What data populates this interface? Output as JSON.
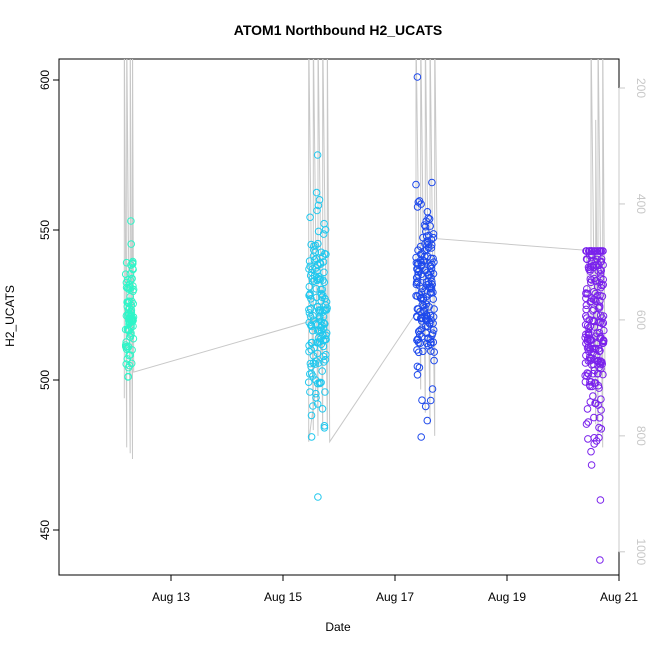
{
  "chart_data": {
    "type": "scatter",
    "title": "ATOM1 Northbound H2_UCATS",
    "xlabel": "Date",
    "ylabel": "H2_UCATS",
    "x_axis": {
      "type": "date",
      "range": [
        "2016-08-11",
        "2016-08-21"
      ],
      "ticks": [
        {
          "label": "Aug 13",
          "value": "2016-08-13"
        },
        {
          "label": "Aug 15",
          "value": "2016-08-15"
        },
        {
          "label": "Aug 17",
          "value": "2016-08-17"
        },
        {
          "label": "Aug 19",
          "value": "2016-08-19"
        },
        {
          "label": "Aug 21",
          "value": "2016-08-21"
        }
      ]
    },
    "y_axis": {
      "range": [
        435,
        607
      ],
      "ticks": [
        {
          "label": "450",
          "value": 450
        },
        {
          "label": "500",
          "value": 500
        },
        {
          "label": "550",
          "value": 550
        },
        {
          "label": "600",
          "value": 600
        }
      ]
    },
    "y2_axis": {
      "reversed": true,
      "range": [
        1040,
        150
      ],
      "color": "#c8c8c8",
      "ticks": [
        {
          "label": "200",
          "value": 200
        },
        {
          "label": "400",
          "value": 400
        },
        {
          "label": "600",
          "value": 600
        },
        {
          "label": "800",
          "value": 800
        },
        {
          "label": "1000",
          "value": 1000
        }
      ]
    },
    "grid": false,
    "flights": [
      {
        "start": "2016-08-12 04:30",
        "end": "2016-08-12 08:00",
        "color": "#2ff5c8",
        "center": 523,
        "spread": 11,
        "min": 501,
        "max": 553,
        "n": 90
      },
      {
        "start": "2016-08-15 11:00",
        "end": "2016-08-15 19:00",
        "color": "#22c8ee",
        "center": 520,
        "spread": 17,
        "min": 461,
        "max": 575,
        "n": 160
      },
      {
        "start": "2016-08-17 09:00",
        "end": "2016-08-17 17:00",
        "color": "#1e49ec",
        "center": 527,
        "spread": 14,
        "min": 481,
        "max": 601,
        "n": 170
      },
      {
        "start": "2016-08-20 09:30",
        "end": "2016-08-20 17:30",
        "color": "#7a22ec",
        "center": 517,
        "spread": 20,
        "min": 440,
        "max": 543,
        "n": 210
      }
    ],
    "pressure_track": {
      "color": "#c8c8c8",
      "points": [
        [
          "2016-08-12 04:00",
          735
        ],
        [
          "2016-08-12 04:00",
          100
        ],
        [
          "2016-08-12 05:00",
          820
        ],
        [
          "2016-08-12 05:00",
          100
        ],
        [
          "2016-08-12 06:30",
          830
        ],
        [
          "2016-08-12 06:30",
          100
        ],
        [
          "2016-08-12 07:30",
          840
        ],
        [
          "2016-08-12 07:30",
          100
        ],
        [
          "2016-08-12 08:00",
          690
        ],
        [
          "2016-08-15 18:00",
          595
        ],
        [
          "2016-08-15 11:00",
          810
        ],
        [
          "2016-08-15 11:00",
          100
        ],
        [
          "2016-08-15 13:00",
          790
        ],
        [
          "2016-08-15 13:00",
          100
        ],
        [
          "2016-08-15 15:00",
          800
        ],
        [
          "2016-08-15 15:00",
          100
        ],
        [
          "2016-08-15 17:00",
          790
        ],
        [
          "2016-08-15 17:00",
          100
        ],
        [
          "2016-08-15 19:00",
          780
        ],
        [
          "2016-08-15 19:00",
          100
        ],
        [
          "2016-08-15 20:00",
          810
        ],
        [
          "2016-08-17 12:00",
          570
        ],
        [
          "2016-08-17 09:00",
          560
        ],
        [
          "2016-08-17 09:00",
          100
        ],
        [
          "2016-08-17 11:00",
          720
        ],
        [
          "2016-08-17 11:00",
          100
        ],
        [
          "2016-08-17 13:00",
          760
        ],
        [
          "2016-08-17 13:00",
          100
        ],
        [
          "2016-08-17 15:00",
          780
        ],
        [
          "2016-08-17 15:00",
          100
        ],
        [
          "2016-08-17 17:00",
          800
        ],
        [
          "2016-08-17 17:00",
          100
        ],
        [
          "2016-08-17 18:00",
          460
        ],
        [
          "2016-08-20 10:00",
          480
        ],
        [
          "2016-08-20 12:00",
          700
        ],
        [
          "2016-08-20 12:00",
          100
        ],
        [
          "2016-08-20 14:00",
          780
        ],
        [
          "2016-08-20 14:00",
          255
        ],
        [
          "2016-08-20 15:00",
          800
        ],
        [
          "2016-08-20 15:00",
          100
        ],
        [
          "2016-08-20 17:00",
          820
        ],
        [
          "2016-08-20 17:00",
          100
        ],
        [
          "2016-08-20 18:00",
          700
        ]
      ]
    }
  }
}
